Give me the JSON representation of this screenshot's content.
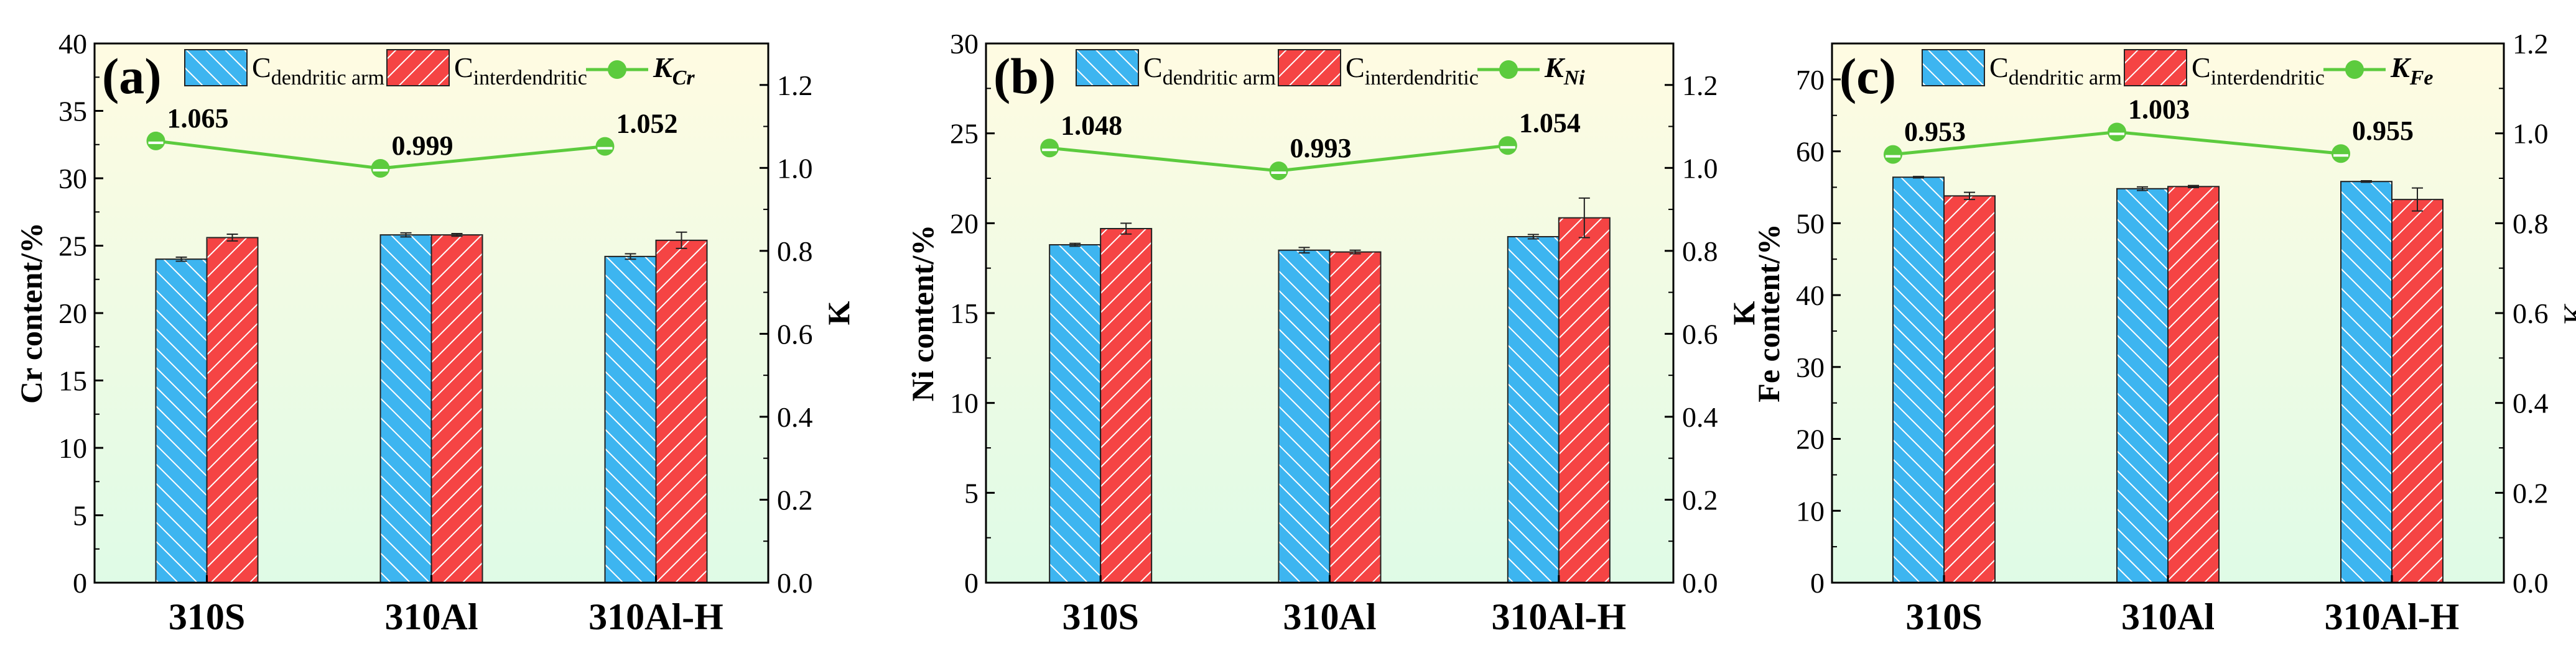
{
  "colors": {
    "dendritic": "#3db5f0",
    "interdendritic": "#f54444",
    "k_line": "#5ccb3e",
    "bg_top": "#fffbe2",
    "bg_bottom": "#dffbe6"
  },
  "chart_data": [
    {
      "type": "bar",
      "panel_label": "(a)",
      "categories": [
        "310S",
        "310Al",
        "310Al-H"
      ],
      "ylabel": "Cr content/%",
      "y2label": "K",
      "ylim": [
        0,
        40
      ],
      "yticks": [
        0,
        5,
        10,
        15,
        20,
        25,
        30,
        35,
        40
      ],
      "y2lim": [
        0,
        1.3
      ],
      "y2ticks": [
        "0.0",
        "0.2",
        "0.4",
        "0.6",
        "0.8",
        "1.0",
        "1.2"
      ],
      "legend": [
        {
          "main": "C",
          "sub": "dendritic arm"
        },
        {
          "main": "C",
          "sub": "interdendritic"
        },
        {
          "main": "K",
          "sub": "Cr"
        }
      ],
      "series": [
        {
          "name": "C dendritic arm",
          "values": [
            24.0,
            25.8,
            24.2
          ],
          "errors": [
            0.15,
            0.15,
            0.2
          ]
        },
        {
          "name": "C interdendritic",
          "values": [
            25.6,
            25.8,
            25.4
          ],
          "errors": [
            0.25,
            0.1,
            0.6
          ]
        }
      ],
      "k": {
        "name": "K Cr",
        "values": [
          1.065,
          0.999,
          1.052
        ],
        "labels": [
          "1.065",
          "0.999",
          "1.052"
        ]
      }
    },
    {
      "type": "bar",
      "panel_label": "(b)",
      "categories": [
        "310S",
        "310Al",
        "310Al-H"
      ],
      "ylabel": "Ni content/%",
      "y2label": "K",
      "ylim": [
        0,
        30
      ],
      "yticks": [
        0,
        5,
        10,
        15,
        20,
        25,
        30
      ],
      "y2lim": [
        0,
        1.3
      ],
      "y2ticks": [
        "0.0",
        "0.2",
        "0.4",
        "0.6",
        "0.8",
        "1.0",
        "1.2"
      ],
      "legend": [
        {
          "main": "C",
          "sub": "dendritic arm"
        },
        {
          "main": "C",
          "sub": "interdendritic"
        },
        {
          "main": "K",
          "sub": "Ni"
        }
      ],
      "series": [
        {
          "name": "C dendritic arm",
          "values": [
            18.8,
            18.5,
            19.25
          ],
          "errors": [
            0.08,
            0.15,
            0.12
          ]
        },
        {
          "name": "C interdendritic",
          "values": [
            19.7,
            18.4,
            20.3
          ],
          "errors": [
            0.3,
            0.1,
            1.1
          ]
        }
      ],
      "k": {
        "name": "K Ni",
        "values": [
          1.048,
          0.993,
          1.054
        ],
        "labels": [
          "1.048",
          "0.993",
          "1.054"
        ]
      }
    },
    {
      "type": "bar",
      "panel_label": "(c)",
      "categories": [
        "310S",
        "310Al",
        "310Al-H"
      ],
      "ylabel": "Fe content/%",
      "y2label": "K",
      "ylim": [
        0,
        75
      ],
      "yticks": [
        0,
        10,
        20,
        30,
        40,
        50,
        60,
        70
      ],
      "y2lim": [
        0,
        1.2
      ],
      "y2ticks": [
        "0.0",
        "0.2",
        "0.4",
        "0.6",
        "0.8",
        "1.0",
        "1.2"
      ],
      "legend": [
        {
          "main": "C",
          "sub": "dendritic arm"
        },
        {
          "main": "C",
          "sub": "interdendritic"
        },
        {
          "main": "K",
          "sub": "Fe"
        }
      ],
      "series": [
        {
          "name": "C dendritic arm",
          "values": [
            56.4,
            54.8,
            55.8
          ],
          "errors": [
            0.1,
            0.25,
            0.1
          ]
        },
        {
          "name": "C interdendritic",
          "values": [
            53.8,
            55.1,
            53.3
          ],
          "errors": [
            0.5,
            0.15,
            1.6
          ]
        }
      ],
      "k": {
        "name": "K Fe",
        "values": [
          0.953,
          1.003,
          0.955
        ],
        "labels": [
          "0.953",
          "1.003",
          "0.955"
        ]
      }
    }
  ]
}
